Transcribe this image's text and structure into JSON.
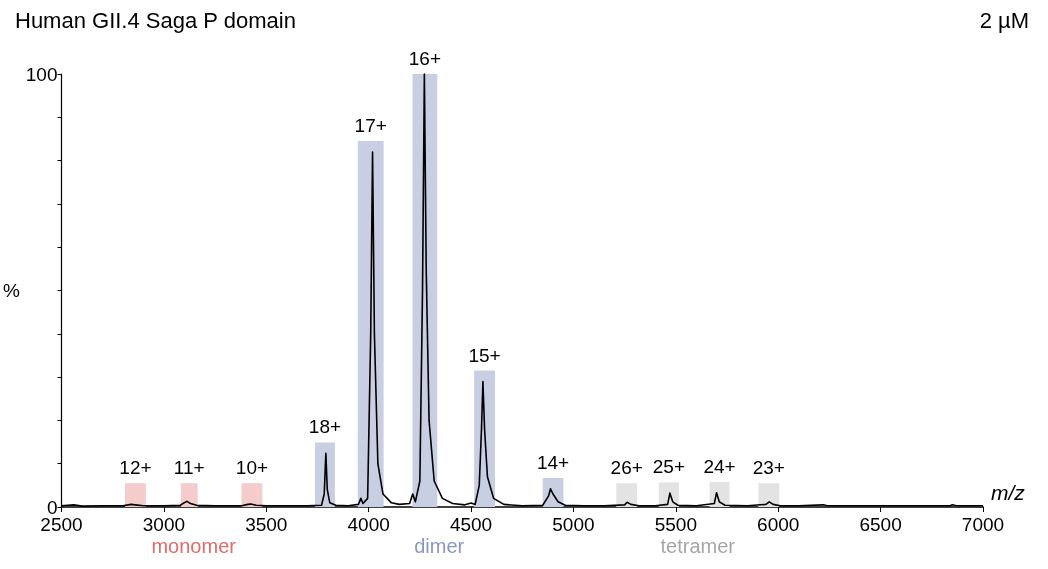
{
  "chart_data": {
    "type": "line",
    "title": "Human GII.4 Saga P domain",
    "subtitle": "2 µM",
    "xlabel": "m/z",
    "ylabel": "%",
    "x": [
      2500,
      2560,
      2600,
      2700,
      2800,
      2840,
      2860,
      2900,
      3000,
      3080,
      3100,
      3112,
      3130,
      3160,
      3250,
      3380,
      3410,
      3425,
      3450,
      3500,
      3600,
      3700,
      3770,
      3783,
      3791,
      3798,
      3810,
      3840,
      3900,
      3950,
      3962,
      3972,
      3995,
      4010,
      4019,
      4028,
      4045,
      4070,
      4110,
      4150,
      4200,
      4215,
      4228,
      4250,
      4263,
      4272,
      4281,
      4295,
      4320,
      4360,
      4410,
      4470,
      4500,
      4520,
      4540,
      4551,
      4558,
      4566,
      4580,
      4610,
      4660,
      4750,
      4850,
      4878,
      4888,
      4900,
      4925,
      4960,
      5050,
      5150,
      5250,
      5262,
      5280,
      5320,
      5400,
      5460,
      5471,
      5485,
      5510,
      5600,
      5688,
      5699,
      5712,
      5740,
      5850,
      5940,
      5956,
      5975,
      6010,
      6100,
      6220,
      6240,
      6500,
      6840,
      6850,
      6870,
      7000
    ],
    "series": [
      {
        "color": "#000000",
        "values": [
          0.3,
          0.5,
          0.2,
          0.3,
          0.3,
          0.6,
          0.5,
          0.3,
          0.3,
          0.4,
          1.0,
          1.3,
          0.8,
          0.4,
          0.3,
          0.3,
          0.6,
          0.7,
          0.4,
          0.3,
          0.3,
          0.3,
          0.4,
          3,
          12.4,
          4,
          1,
          0.4,
          0.3,
          0.6,
          2,
          0.8,
          2,
          40,
          82,
          40,
          10,
          3,
          1,
          0.6,
          0.8,
          3,
          1.2,
          6,
          50,
          100,
          55,
          20,
          6,
          2,
          0.8,
          0.5,
          0.9,
          0.6,
          5,
          18,
          29,
          18,
          7,
          2,
          0.6,
          0.3,
          0.4,
          2.5,
          4.2,
          3,
          1.2,
          0.4,
          0.3,
          0.3,
          0.5,
          1.1,
          0.6,
          0.3,
          0.3,
          0.6,
          3.2,
          1.2,
          0.4,
          0.3,
          0.8,
          3.3,
          1.2,
          0.4,
          0.3,
          0.6,
          1.2,
          0.6,
          0.3,
          0.3,
          0.5,
          0.3,
          0.3,
          0.3,
          0.5,
          0.3,
          0.3
        ]
      }
    ],
    "xlim": [
      2500,
      7000
    ],
    "xticks": [
      2500,
      3000,
      3500,
      4000,
      4500,
      5000,
      5500,
      6000,
      6500,
      7000
    ],
    "ylim": [
      0,
      100
    ],
    "yticks": [
      0,
      {
        "value": 10,
        "label": null
      },
      {
        "value": 20,
        "label": null
      },
      {
        "value": 30,
        "label": null
      },
      {
        "value": 40,
        "label": null
      },
      {
        "value": 50,
        "label": null
      },
      {
        "value": 60,
        "label": null
      },
      {
        "value": 70,
        "label": null
      },
      {
        "value": 80,
        "label": null
      },
      {
        "value": 90,
        "label": null
      },
      100
    ],
    "marker": "none",
    "line_style": "solid",
    "grid": false,
    "bands": [
      {
        "axis": "x",
        "from": 2810,
        "to": 2912,
        "label": "12+",
        "color": "#f4cccc"
      },
      {
        "axis": "x",
        "from": 3083,
        "to": 3165,
        "label": "11+",
        "color": "#f4cccc"
      },
      {
        "axis": "x",
        "from": 3379,
        "to": 3481,
        "label": "10+",
        "color": "#f4cccc"
      },
      {
        "axis": "x",
        "from": 3738,
        "to": 3835,
        "label": "18+",
        "color": "#c9cfe3"
      },
      {
        "axis": "x",
        "from": 3947,
        "to": 4073,
        "label": "17+",
        "color": "#c9cfe3"
      },
      {
        "axis": "x",
        "from": 4214,
        "to": 4335,
        "label": "16+",
        "color": "#c9cfe3"
      },
      {
        "axis": "x",
        "from": 4515,
        "to": 4617,
        "label": "15+",
        "color": "#c9cfe3"
      },
      {
        "axis": "x",
        "from": 4850,
        "to": 4951,
        "label": "14+",
        "color": "#c9cfe3"
      },
      {
        "axis": "x",
        "from": 5209,
        "to": 5311,
        "label": "26+",
        "color": "#e3e3e3"
      },
      {
        "axis": "x",
        "from": 5417,
        "to": 5515,
        "label": "25+",
        "color": "#e3e3e3"
      },
      {
        "axis": "x",
        "from": 5665,
        "to": 5762,
        "label": "24+",
        "color": "#e3e3e3"
      },
      {
        "axis": "x",
        "from": 5903,
        "to": 6005,
        "label": "23+",
        "color": "#e3e3e3"
      }
    ],
    "annotations": [
      "monomer",
      "dimer",
      "tetramer"
    ]
  }
}
